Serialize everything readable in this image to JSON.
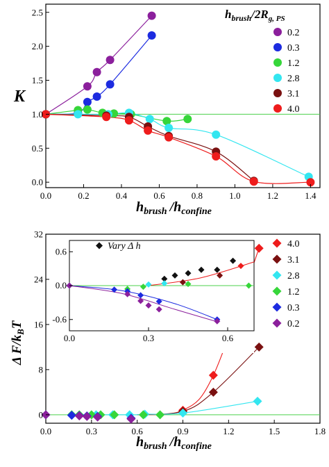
{
  "chart_data": [
    {
      "type": "scatter",
      "ylabel": "K",
      "xlabel_main": "h",
      "xlabel_sub1": "brush",
      "xlabel_sep": "/h",
      "xlabel_sub2": "confine",
      "legend_title_main": "h",
      "legend_title_sub": "brush",
      "legend_title_rest": "/2R",
      "legend_title_sub2": "g, PS",
      "xlim": [
        0,
        1.45
      ],
      "ylim": [
        -0.08,
        2.62
      ],
      "xticks": [
        "0.0",
        "0.2",
        "0.4",
        "0.6",
        "0.8",
        "1.0",
        "1.2",
        "1.4"
      ],
      "yticks": [
        "0.0",
        "0.5",
        "1.0",
        "1.5",
        "2.0",
        "2.5"
      ],
      "reference_line": 1.0,
      "series": [
        {
          "name": "0.2",
          "color": "#8b1f9c",
          "x": [
            0.0,
            0.22,
            0.27,
            0.34,
            0.56
          ],
          "y": [
            1.0,
            1.41,
            1.62,
            1.8,
            2.45
          ]
        },
        {
          "name": "0.3",
          "color": "#1c2be0",
          "x": [
            0.0,
            0.17,
            0.22,
            0.27,
            0.34,
            0.56
          ],
          "y": [
            1.0,
            1.02,
            1.18,
            1.26,
            1.44,
            2.16
          ]
        },
        {
          "name": "1.2",
          "color": "#36d63a",
          "x": [
            0.0,
            0.17,
            0.22,
            0.3,
            0.36,
            0.45,
            0.64,
            0.75
          ],
          "y": [
            1.0,
            1.06,
            1.07,
            1.02,
            1.01,
            1.0,
            0.9,
            0.93
          ]
        },
        {
          "name": "2.8",
          "color": "#33e6f0",
          "x": [
            0.0,
            0.17,
            0.33,
            0.44,
            0.55,
            0.65,
            0.9,
            1.39
          ],
          "y": [
            1.0,
            1.0,
            1.0,
            1.02,
            0.93,
            0.8,
            0.7,
            0.08
          ]
        },
        {
          "name": "3.1",
          "color": "#7a1010",
          "x": [
            0.0,
            0.32,
            0.44,
            0.54,
            0.65,
            0.9,
            1.1
          ],
          "y": [
            1.0,
            0.98,
            0.96,
            0.82,
            0.68,
            0.45,
            0.02
          ]
        },
        {
          "name": "4.0",
          "color": "#ee1c1c",
          "x": [
            0.0,
            0.32,
            0.44,
            0.54,
            0.65,
            0.9,
            1.1,
            1.4
          ],
          "y": [
            1.0,
            0.96,
            0.91,
            0.76,
            0.66,
            0.38,
            0.01,
            0.0
          ]
        }
      ]
    },
    {
      "type": "scatter",
      "ylabel_main": "Δ F/k",
      "ylabel_sub": "B",
      "ylabel_rest": "T",
      "xlabel_main": "h",
      "xlabel_sub1": "brush",
      "xlabel_sep": "/h",
      "xlabel_sub2": "confine",
      "xlim": [
        0,
        1.8
      ],
      "ylim": [
        -1.5,
        32
      ],
      "xticks": [
        "0.0",
        "0.3",
        "0.6",
        "0.9",
        "1.2",
        "1.5",
        "1.8"
      ],
      "yticks": [
        "0",
        "8",
        "16",
        "24",
        "32"
      ],
      "series": [
        {
          "name": "4.0",
          "color": "#ee1c1c",
          "x": [
            0.9,
            1.1,
            1.4
          ],
          "y": [
            0.8,
            7.0,
            29.5
          ]
        },
        {
          "name": "3.1",
          "color": "#7a1010",
          "x": [
            0.9,
            1.1,
            1.4
          ],
          "y": [
            0.6,
            4.0,
            12.0
          ]
        },
        {
          "name": "2.8",
          "color": "#33e6f0",
          "x": [
            0.17,
            0.33,
            0.44,
            0.55,
            0.65,
            0.9,
            1.39
          ],
          "y": [
            0.0,
            0.0,
            0.0,
            0.0,
            0.1,
            0.3,
            2.4
          ]
        },
        {
          "name": "1.2",
          "color": "#36d63a",
          "x": [
            0.17,
            0.22,
            0.3,
            0.36,
            0.45,
            0.64,
            0.75
          ],
          "y": [
            0.0,
            0.0,
            0.0,
            0.0,
            0.0,
            0.0,
            0.0
          ]
        },
        {
          "name": "0.3",
          "color": "#1c2be0",
          "x": [
            0.0,
            0.17,
            0.22,
            0.27,
            0.34,
            0.56
          ],
          "y": [
            0.0,
            -0.1,
            -0.15,
            -0.2,
            -0.3,
            -0.6
          ]
        },
        {
          "name": "0.2",
          "color": "#8b1f9c",
          "x": [
            0.0,
            0.22,
            0.27,
            0.34,
            0.56
          ],
          "y": [
            0.0,
            -0.2,
            -0.3,
            -0.4,
            -0.75
          ]
        }
      ],
      "inset": {
        "legend_label": "Vary Δ h",
        "xlim": [
          0,
          0.7
        ],
        "ylim": [
          -0.8,
          0.8
        ],
        "xticks": [
          "0.0",
          "0.3",
          "0.6"
        ],
        "yticks": [
          "-0.6",
          "0.0",
          "0.6"
        ],
        "series": [
          {
            "name": "Vary Δ h",
            "color": "#111111",
            "x": [
              0.36,
              0.4,
              0.45,
              0.5,
              0.56,
              0.62
            ],
            "y": [
              0.12,
              0.18,
              0.22,
              0.28,
              0.28,
              0.44
            ]
          },
          {
            "name": "4.0",
            "color": "#ee1c1c",
            "x": [
              0.65
            ],
            "y": [
              0.35
            ]
          },
          {
            "name": "3.1",
            "color": "#7a1010",
            "x": [
              0.43,
              0.57
            ],
            "y": [
              0.06,
              0.18
            ]
          },
          {
            "name": "2.8",
            "color": "#33e6f0",
            "x": [
              0.3,
              0.36
            ],
            "y": [
              0.02,
              0.04
            ]
          },
          {
            "name": "1.2",
            "color": "#36d63a",
            "x": [
              0.22,
              0.28,
              0.45,
              0.68
            ],
            "y": [
              -0.06,
              -0.02,
              0.03,
              0.0
            ]
          },
          {
            "name": "0.3",
            "color": "#1c2be0",
            "x": [
              0.0,
              0.17,
              0.22,
              0.27,
              0.34,
              0.56
            ],
            "y": [
              0.0,
              -0.07,
              -0.1,
              -0.17,
              -0.28,
              -0.6
            ]
          },
          {
            "name": "0.2",
            "color": "#8b1f9c",
            "x": [
              0.0,
              0.22,
              0.27,
              0.3,
              0.34,
              0.56
            ],
            "y": [
              0.0,
              -0.15,
              -0.27,
              -0.35,
              -0.42,
              -0.63
            ]
          }
        ]
      }
    }
  ]
}
